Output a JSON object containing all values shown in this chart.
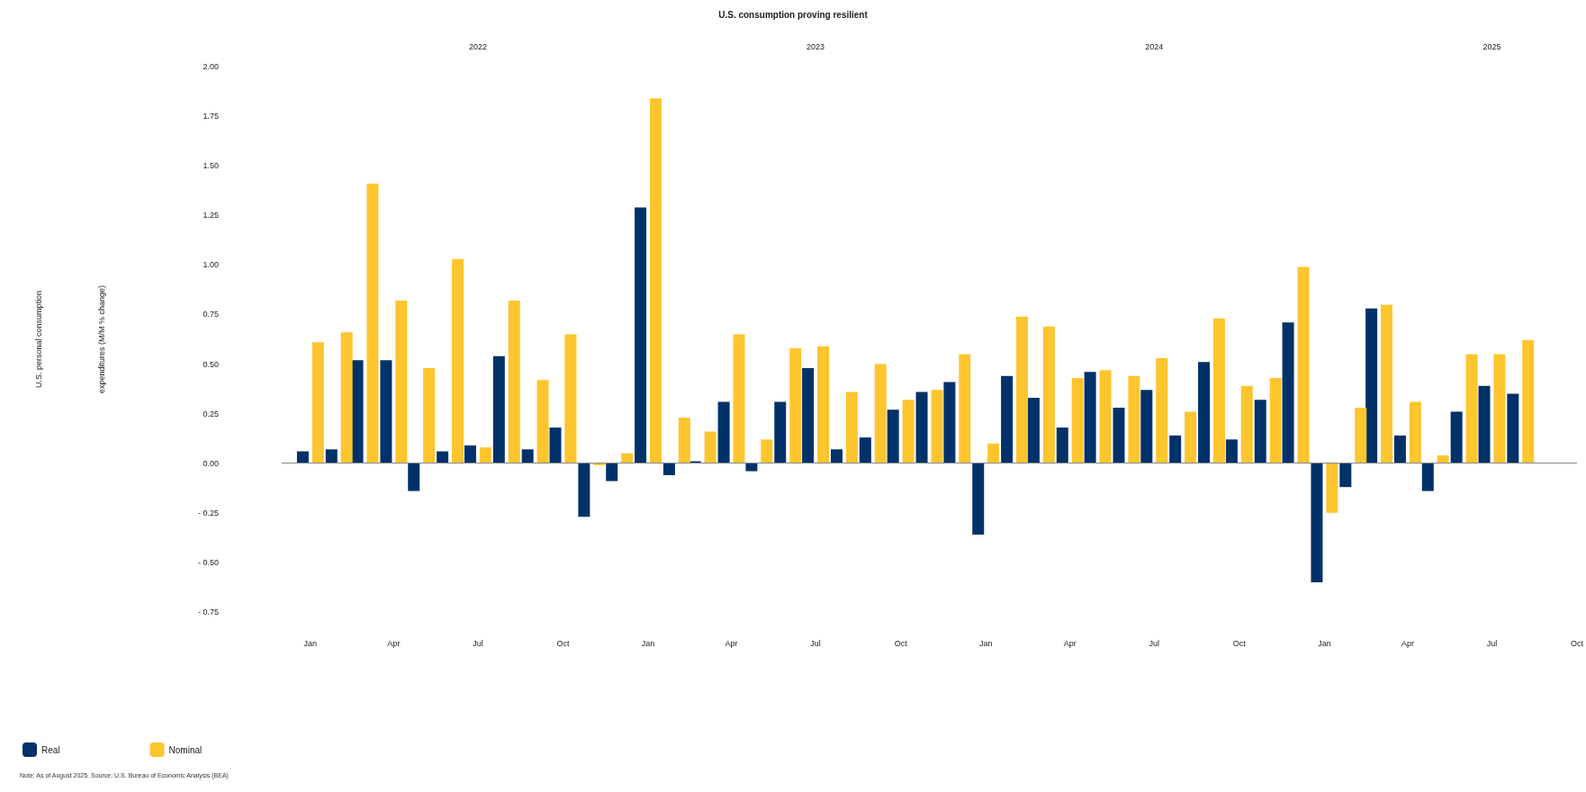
{
  "chart_data": {
    "type": "bar",
    "title": "U.S. consumption proving resilient",
    "ylabel": "U.S. personal consumption\nexpenditures (M/M % change)",
    "x": [
      "2022-01",
      "2022-02",
      "2022-03",
      "2022-04",
      "2022-05",
      "2022-06",
      "2022-07",
      "2022-08",
      "2022-09",
      "2022-10",
      "2022-11",
      "2022-12",
      "2023-01",
      "2023-02",
      "2023-03",
      "2023-04",
      "2023-05",
      "2023-06",
      "2023-07",
      "2023-08",
      "2023-09",
      "2023-10",
      "2023-11",
      "2023-12",
      "2024-01",
      "2024-02",
      "2024-03",
      "2024-04",
      "2024-05",
      "2024-06",
      "2024-07",
      "2024-08",
      "2024-09",
      "2024-10",
      "2024-11",
      "2024-12",
      "2025-01",
      "2025-02",
      "2025-03",
      "2025-04",
      "2025-05",
      "2025-06",
      "2025-07",
      "2025-08"
    ],
    "series": [
      {
        "name": "Real",
        "color": "#003168",
        "values": [
          0.06,
          0.07,
          0.52,
          0.52,
          -0.14,
          0.06,
          0.09,
          0.54,
          0.07,
          0.18,
          -0.27,
          -0.09,
          1.29,
          -0.06,
          0.01,
          0.31,
          -0.04,
          0.31,
          0.48,
          0.07,
          0.13,
          0.27,
          0.36,
          0.41,
          -0.36,
          0.44,
          0.33,
          0.18,
          0.46,
          0.28,
          0.37,
          0.14,
          0.51,
          0.12,
          0.32,
          0.71,
          -0.6,
          -0.12,
          0.78,
          0.14,
          -0.14,
          0.26,
          0.39,
          0.35
        ]
      },
      {
        "name": "Nominal",
        "color": "#fdc52e",
        "values": [
          0.61,
          0.66,
          1.41,
          0.82,
          0.48,
          1.03,
          0.08,
          0.82,
          0.42,
          0.65,
          -0.01,
          0.05,
          1.84,
          0.23,
          0.16,
          0.65,
          0.12,
          0.58,
          0.59,
          0.36,
          0.5,
          0.32,
          0.37,
          0.55,
          0.1,
          0.74,
          0.69,
          0.43,
          0.47,
          0.44,
          0.53,
          0.26,
          0.73,
          0.39,
          0.43,
          0.99,
          -0.25,
          0.28,
          0.8,
          0.31,
          0.04,
          0.55,
          0.55,
          0.62
        ]
      }
    ],
    "xlim": [
      "2021-12",
      "2025-10"
    ],
    "x2lim": [
      "2021-12",
      "2025-10"
    ],
    "x2ticks": [
      {
        "value": "2022-07",
        "label": "2022"
      },
      {
        "value": "2023-07",
        "label": "2023"
      },
      {
        "value": "2024-07",
        "label": "2024"
      },
      {
        "value": "2025-07",
        "label": "2025"
      }
    ],
    "xticks": [
      {
        "value": "2022-01",
        "label": "Jan"
      },
      {
        "value": "2022-04",
        "label": "Apr"
      },
      {
        "value": "2022-07",
        "label": "Jul"
      },
      {
        "value": "2022-10",
        "label": "Oct"
      },
      {
        "value": "2023-01",
        "label": "Jan"
      },
      {
        "value": "2023-04",
        "label": "Apr"
      },
      {
        "value": "2023-07",
        "label": "Jul"
      },
      {
        "value": "2023-10",
        "label": "Oct"
      },
      {
        "value": "2024-01",
        "label": "Jan"
      },
      {
        "value": "2024-04",
        "label": "Apr"
      },
      {
        "value": "2024-07",
        "label": "Jul"
      },
      {
        "value": "2024-10",
        "label": "Oct"
      },
      {
        "value": "2025-01",
        "label": "Jan"
      },
      {
        "value": "2025-04",
        "label": "Apr"
      },
      {
        "value": "2025-07",
        "label": "Jul"
      },
      {
        "value": "2025-10",
        "label": "Oct"
      }
    ],
    "ylim": [
      -0.75,
      2
    ],
    "ref_lines": [
      {
        "axis": "y",
        "value": 0,
        "color": "#888888"
      }
    ],
    "yticks": [
      {
        "value": 2,
        "label": "2.00"
      },
      {
        "value": 1.75,
        "label": "1.75"
      },
      {
        "value": 1.5,
        "label": "1.50"
      },
      {
        "value": 1.25,
        "label": "1.25"
      },
      {
        "value": 1,
        "label": "1.00"
      },
      {
        "value": 0.75,
        "label": "0.75"
      },
      {
        "value": 0.5,
        "label": "0.50"
      },
      {
        "value": 0.25,
        "label": "0.25"
      },
      {
        "value": 0,
        "label": "0.00"
      },
      {
        "value": -0.25,
        "label": "- 0.25"
      },
      {
        "value": -0.5,
        "label": "- 0.50"
      },
      {
        "value": -0.75,
        "label": "- 0.75"
      }
    ],
    "grid": false,
    "legend": "bottom left",
    "annotations": [
      "Note: As of August 2025. Source: U.S. Bureau of Economic Analysis (BEA)"
    ]
  }
}
